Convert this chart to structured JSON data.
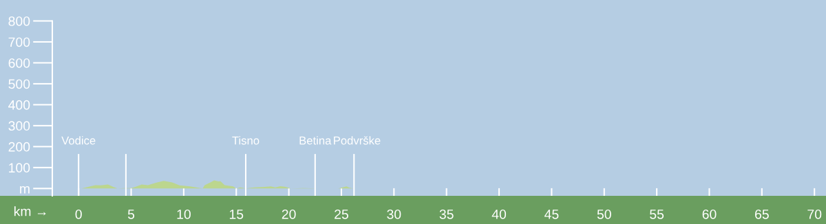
{
  "chart_data": {
    "type": "area",
    "xlabel": "km →",
    "x": [
      0,
      0.3,
      1.1,
      1.6,
      2.1,
      2.8,
      3.3,
      3.7,
      4.4,
      5.0,
      5.4,
      6.0,
      6.6,
      7.4,
      8.1,
      8.9,
      9.6,
      10.6,
      11.8,
      12.0,
      12.6,
      12.9,
      13.3,
      13.5,
      13.9,
      14.7,
      15.0,
      15.4,
      15.9,
      16.7,
      17.7,
      18.3,
      18.7,
      19.2,
      19.7,
      20.2,
      21.4,
      22.7,
      24.7,
      25.5,
      25.7,
      26.1
    ],
    "series": [
      {
        "color": "#bcd68e",
        "values": [
          0,
          0,
          10,
          16,
          15,
          19,
          8,
          0,
          2,
          2,
          8,
          19,
          16,
          28,
          36,
          29,
          15,
          10,
          0,
          16,
          31,
          39,
          34,
          35,
          16,
          10,
          0,
          5,
          0,
          5,
          8,
          10,
          5,
          11,
          8,
          0,
          2,
          0,
          0,
          10,
          5,
          0
        ]
      }
    ],
    "xlim": [
      -2.5,
      71.1
    ],
    "ylim": [
      -35,
      900
    ],
    "xticks": [
      0,
      5,
      10,
      15,
      20,
      25,
      30,
      35,
      40,
      45,
      50,
      55,
      60,
      65,
      70
    ],
    "yticks": [
      {
        "value": 0,
        "label": "m"
      },
      100,
      200,
      300,
      400,
      500,
      600,
      700,
      800
    ],
    "ref_lines": [
      {
        "axis": "x",
        "value": 0,
        "label": "Vodice",
        "color": "#ffffff"
      },
      {
        "axis": "x",
        "value": 4.5,
        "label": null,
        "color": "#ffffff"
      },
      {
        "axis": "x",
        "value": 15.9,
        "label": "Tisno",
        "color": "#ffffff"
      },
      {
        "axis": "x",
        "value": 22.5,
        "label": "Betina",
        "color": "#ffffff"
      },
      {
        "axis": "x",
        "value": 26.2,
        "label": "Podvrške",
        "color": "#ffffff"
      }
    ],
    "grid": false
  }
}
